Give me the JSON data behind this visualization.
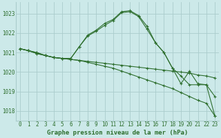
{
  "background_color": "#cce9e9",
  "grid_color": "#aacccc",
  "line_color": "#2d6e2d",
  "title": "Graphe pression niveau de la mer (hPa)",
  "xlim": [
    -0.5,
    23.5
  ],
  "ylim": [
    1017.5,
    1023.6
  ],
  "yticks": [
    1018,
    1019,
    1020,
    1021,
    1022,
    1023
  ],
  "xticks": [
    0,
    1,
    2,
    3,
    4,
    5,
    6,
    7,
    8,
    9,
    10,
    11,
    12,
    13,
    14,
    15,
    16,
    17,
    18,
    19,
    20,
    21,
    22,
    23
  ],
  "series": [
    {
      "x": [
        0,
        1,
        2,
        3,
        4,
        5,
        6,
        7,
        8,
        9,
        10,
        11,
        12,
        13,
        14,
        15,
        16,
        17,
        18,
        19,
        20,
        21,
        22,
        23
      ],
      "y": [
        1021.2,
        1021.1,
        1021.0,
        1020.85,
        1020.75,
        1020.7,
        1020.7,
        1021.3,
        1021.9,
        1022.15,
        1022.5,
        1022.7,
        1023.1,
        1023.15,
        1022.9,
        1022.35,
        1021.5,
        1021.0,
        1020.2,
        1019.4,
        1020.05,
        1019.4,
        1019.35,
        1018.75
      ]
    },
    {
      "x": [
        0,
        1,
        2,
        3,
        4,
        5,
        6,
        7,
        8,
        9,
        10,
        11,
        12,
        13,
        14,
        15,
        16,
        17,
        18,
        19,
        20,
        21,
        22,
        23
      ],
      "y": [
        1021.2,
        1021.1,
        1021.0,
        1020.85,
        1020.75,
        1020.7,
        1020.7,
        1021.3,
        1021.85,
        1022.1,
        1022.4,
        1022.65,
        1023.05,
        1023.1,
        1022.85,
        1022.2,
        1021.5,
        1021.0,
        1020.2,
        1019.8,
        1019.35,
        1019.35,
        1019.35,
        1017.75
      ]
    },
    {
      "x": [
        0,
        1,
        2,
        3,
        4,
        5,
        6,
        7,
        8,
        9,
        10,
        11,
        12,
        13,
        14,
        15,
        16,
        17,
        18,
        19,
        20,
        21,
        22,
        23
      ],
      "y": [
        1021.2,
        1021.1,
        1020.95,
        1020.85,
        1020.75,
        1020.7,
        1020.65,
        1020.6,
        1020.55,
        1020.5,
        1020.45,
        1020.4,
        1020.35,
        1020.3,
        1020.25,
        1020.2,
        1020.15,
        1020.1,
        1020.05,
        1020.0,
        1019.95,
        1019.85,
        1019.8,
        1019.7
      ]
    },
    {
      "x": [
        0,
        1,
        2,
        3,
        4,
        5,
        6,
        7,
        8,
        9,
        10,
        11,
        12,
        13,
        14,
        15,
        16,
        17,
        18,
        19,
        20,
        21,
        22,
        23
      ],
      "y": [
        1021.2,
        1021.1,
        1020.95,
        1020.85,
        1020.75,
        1020.7,
        1020.65,
        1020.6,
        1020.5,
        1020.4,
        1020.3,
        1020.2,
        1020.05,
        1019.9,
        1019.75,
        1019.6,
        1019.45,
        1019.3,
        1019.15,
        1018.95,
        1018.75,
        1018.55,
        1018.4,
        1017.75
      ]
    }
  ]
}
